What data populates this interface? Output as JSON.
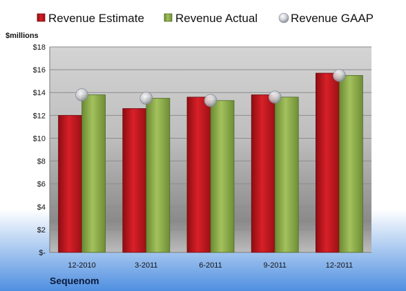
{
  "chart_data": {
    "type": "bar",
    "unit_label": "$millions",
    "company": "Sequenom",
    "categories": [
      "12-2010",
      "3-2011",
      "6-2011",
      "9-2011",
      "12-2011"
    ],
    "series": [
      {
        "name": "Revenue Estimate",
        "kind": "bar",
        "color": "#c0141b",
        "values": [
          12.0,
          12.6,
          13.6,
          13.8,
          15.7
        ]
      },
      {
        "name": "Revenue Actual",
        "kind": "bar",
        "color": "#8fae4a",
        "values": [
          13.8,
          13.5,
          13.3,
          13.6,
          15.5
        ]
      },
      {
        "name": "Revenue GAAP",
        "kind": "marker",
        "color": "#c8ccd4",
        "values": [
          13.8,
          13.5,
          13.3,
          13.6,
          15.5
        ]
      }
    ],
    "ylim": [
      0,
      18
    ],
    "yticks": [
      0,
      2,
      4,
      6,
      8,
      10,
      12,
      14,
      16,
      18
    ],
    "ytick_labels": [
      "$-",
      "$2",
      "$4",
      "$6",
      "$8",
      "$10",
      "$12",
      "$14",
      "$16",
      "$18"
    ],
    "grid": true,
    "legend": "top"
  }
}
